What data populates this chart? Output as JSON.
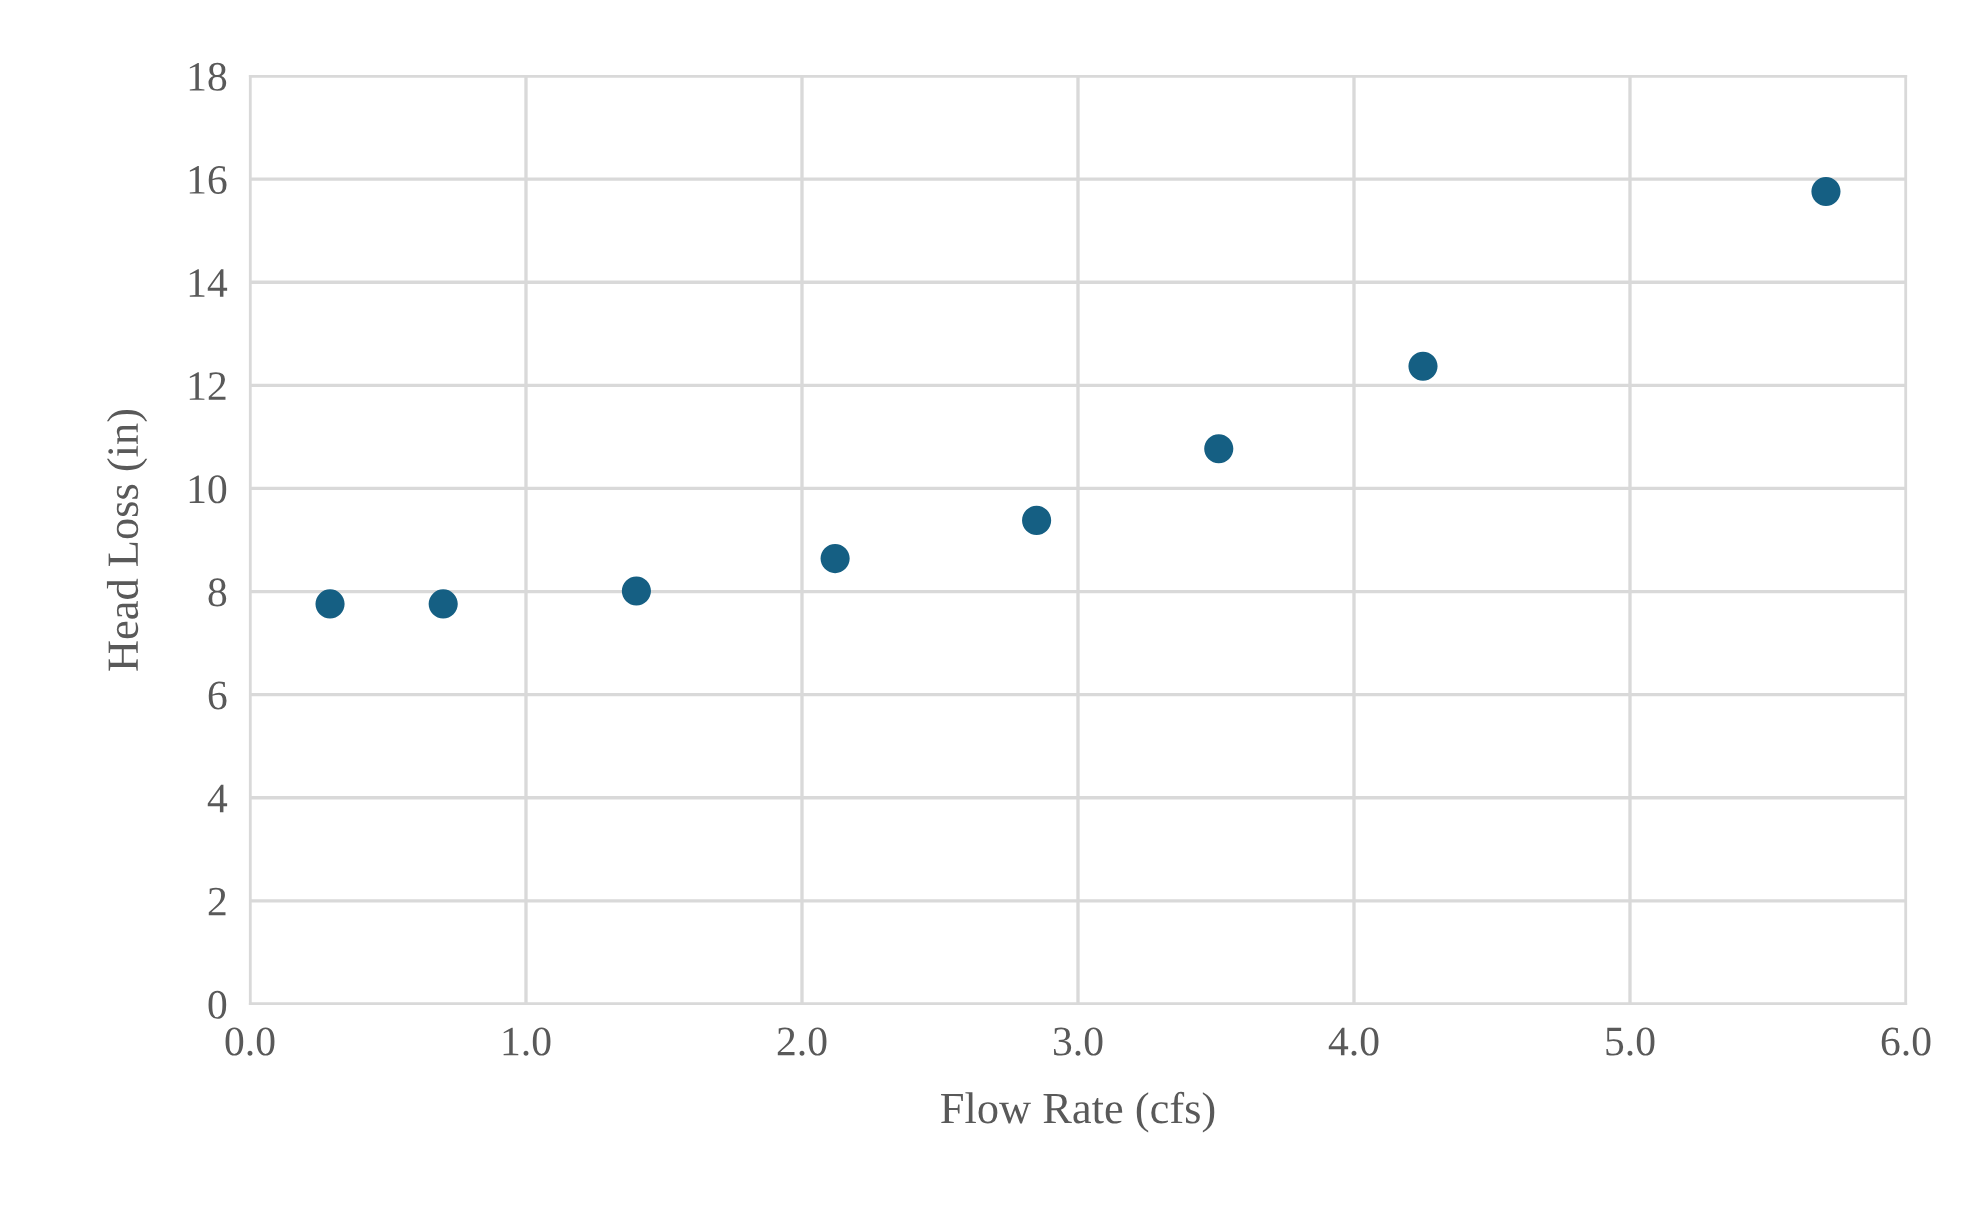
{
  "chart_data": {
    "type": "scatter",
    "xlabel": "Flow Rate (cfs)",
    "ylabel": "Head Loss (in)",
    "x": [
      0.29,
      0.7,
      1.4,
      2.12,
      2.85,
      3.51,
      4.25,
      5.71
    ],
    "series": [
      {
        "color": "#155f83",
        "values": [
          7.76,
          7.76,
          8.01,
          8.64,
          9.38,
          10.77,
          12.37,
          15.76
        ]
      }
    ],
    "xlim": [
      0,
      6
    ],
    "xticks": [
      {
        "value": 0,
        "label": "0.0"
      },
      {
        "value": 1,
        "label": "1.0"
      },
      {
        "value": 2,
        "label": "2.0"
      },
      {
        "value": 3,
        "label": "3.0"
      },
      {
        "value": 4,
        "label": "4.0"
      },
      {
        "value": 5,
        "label": "5.0"
      },
      {
        "value": 6,
        "label": "6.0"
      }
    ],
    "ylim": [
      0,
      18
    ],
    "yticks": [
      0,
      2,
      4,
      6,
      8,
      10,
      12,
      14,
      16,
      18
    ],
    "grid": true,
    "marker": "circle",
    "legend": false
  }
}
